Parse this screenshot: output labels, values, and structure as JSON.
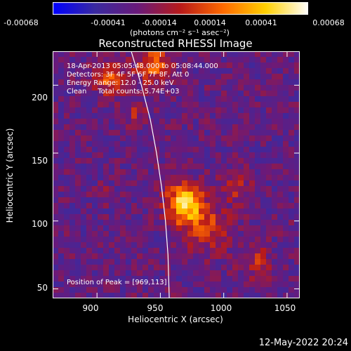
{
  "colorbar": {
    "ticks": [
      "-0.00068",
      "-0.00041",
      "-0.00014",
      "0.00014",
      "0.00041",
      "0.00068"
    ],
    "units": "(photons cm⁻² s⁻¹ asec⁻²)",
    "colors": [
      "#0000ff",
      "#3a2aa0",
      "#6a1a7a",
      "#b81a1a",
      "#ff6a00",
      "#ffd000",
      "#ffffff"
    ]
  },
  "title": "Reconstructed RHESSI Image",
  "info": {
    "time": "18-Apr-2013 05:05:48.000 to 05:08:44.000",
    "detectors": "Detectors: 3F 4F 5F 6F 7F 8F, Att 0",
    "energy": "Energy Range: 12.0 - 25.0 keV",
    "clean": "Clean     Total counts: 5.74E+03",
    "peak": "Position of Peak = [969,113]"
  },
  "chart_data": {
    "type": "heatmap",
    "xlabel": "Heliocentric X (arcsec)",
    "ylabel": "Heliocentric Y (arcsec)",
    "xlim": [
      865,
      1060
    ],
    "ylim": [
      43,
      225
    ],
    "xticks": [
      "900",
      "950",
      "1000",
      "1050"
    ],
    "yticks": [
      "50",
      "100",
      "150",
      "200"
    ],
    "xtick_values": [
      900,
      950,
      1000,
      1050
    ],
    "ytick_values": [
      50,
      100,
      150,
      200
    ],
    "peak": [
      969,
      113
    ],
    "limb_points": [
      [
        927,
        225
      ],
      [
        935,
        200
      ],
      [
        942,
        175
      ],
      [
        947,
        150
      ],
      [
        951,
        125
      ],
      [
        954,
        100
      ],
      [
        956,
        75
      ],
      [
        957,
        43
      ]
    ]
  },
  "footer": {
    "date": "12-May-2022 20:24"
  }
}
